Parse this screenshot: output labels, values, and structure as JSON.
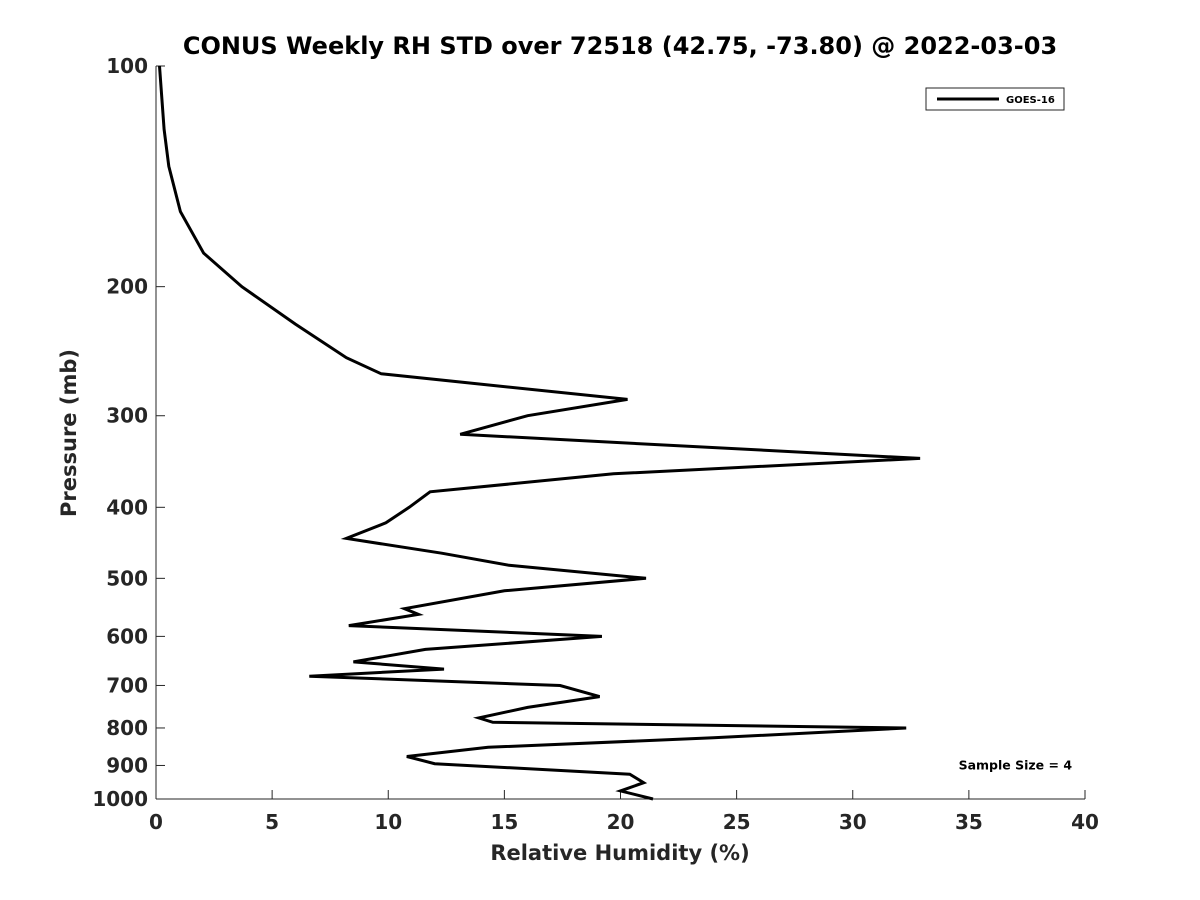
{
  "chart_data": {
    "type": "line",
    "title": "CONUS Weekly RH STD over 72518 (42.75, -73.80) @ 2022-03-03",
    "xlabel": "Relative Humidity (%)",
    "ylabel": "Pressure (mb)",
    "xlim": [
      0,
      40
    ],
    "ylim": [
      100,
      1000
    ],
    "yscale": "log",
    "y_reversed": true,
    "grid": false,
    "legend_position": "top-right",
    "x_ticks": [
      "0",
      "5",
      "10",
      "15",
      "20",
      "25",
      "30",
      "35",
      "40"
    ],
    "y_ticks": [
      "100",
      "200",
      "300",
      "400",
      "500",
      "600",
      "700",
      "800",
      "900",
      "1000"
    ],
    "series": [
      {
        "name": "GOES-16",
        "color": "#000000",
        "points": [
          [
            0.15,
            100
          ],
          [
            0.35,
            122
          ],
          [
            0.55,
            137
          ],
          [
            1.05,
            158
          ],
          [
            2.05,
            180
          ],
          [
            3.7,
            200
          ],
          [
            6.0,
            225
          ],
          [
            8.2,
            250
          ],
          [
            9.7,
            263
          ],
          [
            20.3,
            285
          ],
          [
            16.0,
            300
          ],
          [
            13.1,
            318
          ],
          [
            32.9,
            343
          ],
          [
            19.7,
            360
          ],
          [
            11.8,
            381
          ],
          [
            10.9,
            400
          ],
          [
            9.9,
            420
          ],
          [
            8.2,
            441
          ],
          [
            12.3,
            462
          ],
          [
            15.2,
            480
          ],
          [
            21.1,
            500
          ],
          [
            15.0,
            520
          ],
          [
            10.7,
            550
          ],
          [
            11.3,
            560
          ],
          [
            8.3,
            580
          ],
          [
            19.2,
            600
          ],
          [
            11.6,
            625
          ],
          [
            8.5,
            650
          ],
          [
            12.4,
            665
          ],
          [
            6.6,
            680
          ],
          [
            17.4,
            700
          ],
          [
            19.1,
            725
          ],
          [
            16.0,
            750
          ],
          [
            13.9,
            775
          ],
          [
            14.5,
            786
          ],
          [
            32.3,
            800
          ],
          [
            24.0,
            825
          ],
          [
            14.3,
            850
          ],
          [
            10.8,
            875
          ],
          [
            12.0,
            895
          ],
          [
            20.4,
            925
          ],
          [
            21.0,
            950
          ],
          [
            20.0,
            975
          ],
          [
            21.4,
            1000
          ]
        ]
      }
    ],
    "annotations": [
      {
        "text": "Sample Size = 4",
        "x": 37,
        "y": 900
      }
    ]
  }
}
